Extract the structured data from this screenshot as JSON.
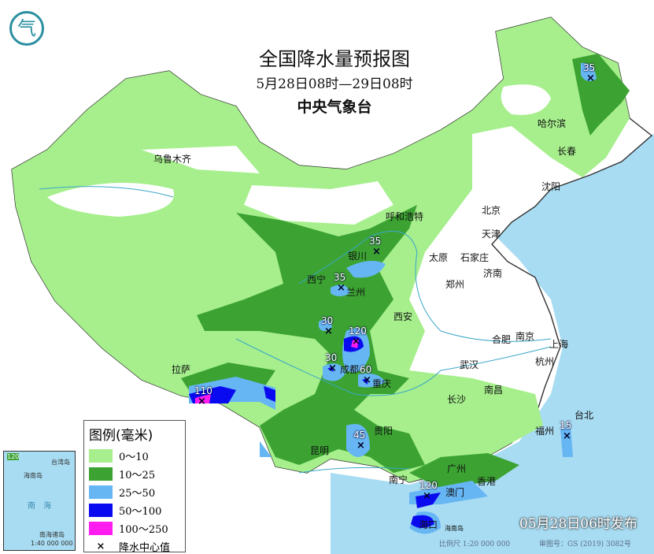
{
  "title": "全国降水量预报图",
  "period": "5月28日08时—29日08时",
  "issuer": "中央气象台",
  "logo_text": "气",
  "legend": {
    "title": "图例(毫米)",
    "items": [
      {
        "label": "0～10",
        "color": "#a6ef8c"
      },
      {
        "label": "10～25",
        "color": "#3ca333"
      },
      {
        "label": "25～50",
        "color": "#66b6f4"
      },
      {
        "label": "50～100",
        "color": "#0a0af0"
      },
      {
        "label": "100～250",
        "color": "#ff1cf0"
      }
    ],
    "center_symbol": "×",
    "center_label": "降水中心值"
  },
  "inset": {
    "sea": "南　海",
    "note": "南海诸岛",
    "scale": "1:40 000 000",
    "value": "120",
    "taiwan": "台湾岛",
    "hainan": "海南岛"
  },
  "issue_time": "05月28日06时发布",
  "scale": "比例尺 1:20 000 000",
  "review_no": "审图号：GS (2019) 3082号",
  "cities": [
    "乌鲁木齐",
    "哈尔滨",
    "长春",
    "沈阳",
    "北京",
    "天津",
    "呼和浩特",
    "石家庄",
    "太原",
    "银川",
    "济南",
    "西宁",
    "兰州",
    "郑州",
    "西安",
    "合肥",
    "南京",
    "上海",
    "杭州",
    "成都",
    "武汉",
    "重庆",
    "拉萨",
    "长沙",
    "南昌",
    "福州",
    "台北",
    "贵阳",
    "昆明",
    "南宁",
    "广州",
    "香港",
    "澳门",
    "海口",
    "海南岛"
  ],
  "rain_centers": [
    "35",
    "35",
    "35",
    "30",
    "120",
    "30",
    "60",
    "110",
    "45",
    "15",
    "120"
  ],
  "colors": {
    "sea": "#a8dcf2",
    "land": "#ffffff",
    "border": "#333333",
    "river": "#3aa6c8"
  }
}
